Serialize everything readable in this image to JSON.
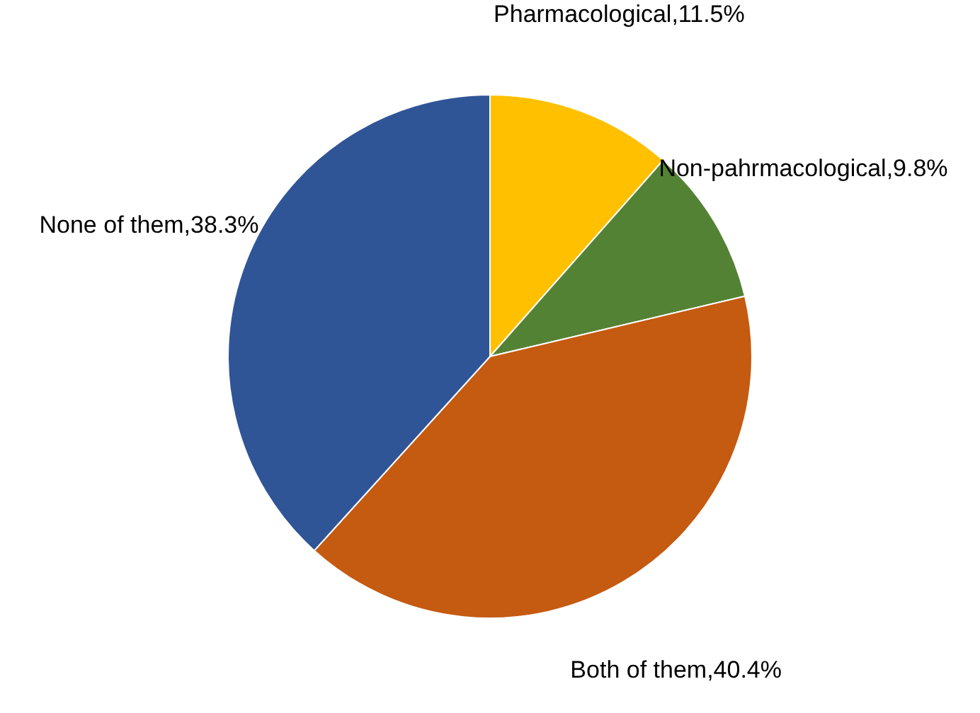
{
  "chart_data": {
    "type": "pie",
    "categories": [
      "Pharmacological",
      "Non-pahrmacological",
      "Both of them",
      "None of them"
    ],
    "values": [
      11.5,
      9.8,
      40.4,
      38.3
    ],
    "value_labels": [
      "11.5%",
      "9.8%",
      "40.4%",
      "38.3%"
    ],
    "colors": [
      "#ffc000",
      "#548235",
      "#c55a11",
      "#2f5597"
    ]
  }
}
